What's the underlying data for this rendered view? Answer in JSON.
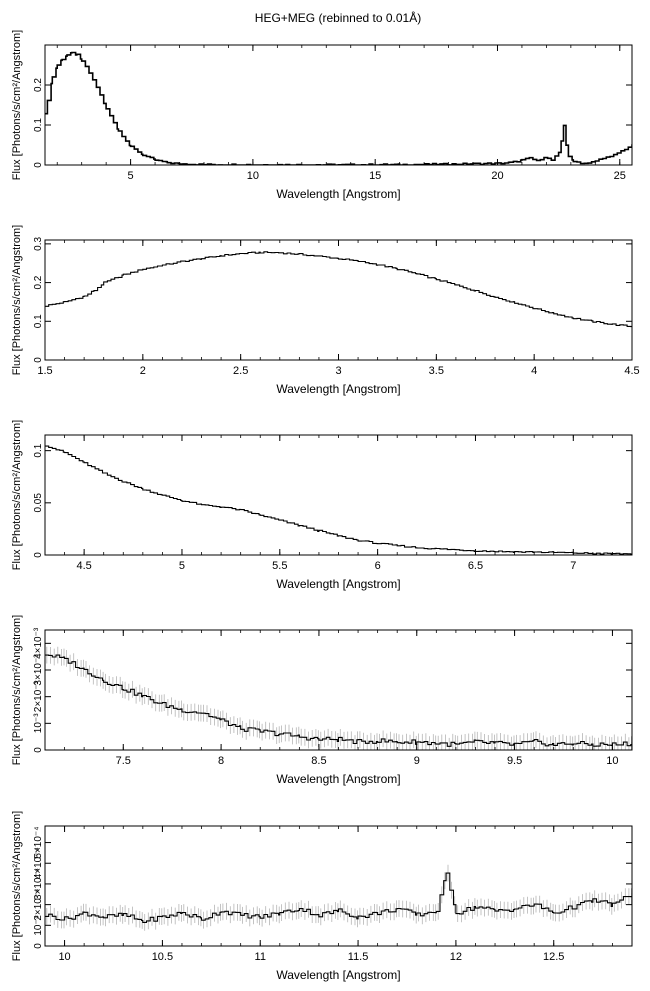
{
  "figure": {
    "title": "HEG+MEG (rebinned to 0.01Å)"
  },
  "chart_data": [
    {
      "type": "line",
      "title": "HEG+MEG (rebinned to 0.01Å)",
      "xlabel": "Wavelength [Angstrom]",
      "ylabel": "Flux [Photons/s/cm²/Angstrom]",
      "xlim": [
        1.5,
        25.5
      ],
      "ylim": [
        0,
        0.3
      ],
      "xticks": [
        5,
        10,
        15,
        20,
        25
      ],
      "xtick_labels": [
        "5",
        "10",
        "15",
        "20",
        "25"
      ],
      "yticks": [
        0,
        0.1,
        0.2
      ],
      "ytick_labels": [
        "0",
        "0.1",
        "0.2"
      ],
      "series": [
        {
          "x": [
            1.5,
            1.6,
            1.8,
            2.0,
            2.2,
            2.4,
            2.6,
            2.8,
            3.0,
            3.3,
            3.6,
            4.0,
            4.5,
            5.0,
            5.5,
            6.0,
            6.5,
            7.0,
            7.5,
            8,
            9,
            10,
            12,
            14,
            16,
            18,
            19,
            20,
            20.5,
            21,
            21.3,
            21.6,
            21.9,
            22.2,
            22.5,
            22.6,
            22.7,
            22.8,
            22.9,
            23.1,
            23.4,
            23.7,
            24.0,
            24.3,
            24.6,
            24.9,
            25.2,
            25.5
          ],
          "y": [
            0.13,
            0.16,
            0.22,
            0.25,
            0.265,
            0.275,
            0.28,
            0.275,
            0.26,
            0.23,
            0.195,
            0.14,
            0.085,
            0.045,
            0.025,
            0.012,
            0.006,
            0.003,
            0.002,
            0.001,
            0.001,
            0.0005,
            0.0005,
            0.0005,
            0.001,
            0.002,
            0.003,
            0.004,
            0.006,
            0.012,
            0.018,
            0.01,
            0.02,
            0.012,
            0.03,
            0.06,
            0.1,
            0.05,
            0.02,
            0.01,
            0.005,
            0.004,
            0.01,
            0.018,
            0.02,
            0.03,
            0.04,
            0.05
          ]
        }
      ]
    },
    {
      "type": "line",
      "xlabel": "Wavelength [Angstrom]",
      "ylabel": "Flux [Photons/s/cm²/Angstrom]",
      "xlim": [
        1.5,
        4.5
      ],
      "ylim": [
        0,
        0.31
      ],
      "xticks": [
        1.5,
        2,
        2.5,
        3,
        3.5,
        4,
        4.5
      ],
      "xtick_labels": [
        "1.5",
        "2",
        "2.5",
        "3",
        "3.5",
        "4",
        "4.5"
      ],
      "yticks": [
        0,
        0.1,
        0.2,
        0.3
      ],
      "ytick_labels": [
        "0",
        "0.1",
        "0.2",
        "0.3"
      ],
      "series": [
        {
          "x": [
            1.5,
            1.6,
            1.7,
            1.75,
            1.8,
            1.9,
            2.0,
            2.1,
            2.2,
            2.3,
            2.4,
            2.5,
            2.6,
            2.7,
            2.8,
            2.9,
            3.0,
            3.1,
            3.2,
            3.3,
            3.4,
            3.5,
            3.6,
            3.7,
            3.8,
            3.9,
            4.0,
            4.1,
            4.2,
            4.3,
            4.4,
            4.5
          ],
          "y": [
            0.14,
            0.15,
            0.165,
            0.18,
            0.2,
            0.22,
            0.235,
            0.245,
            0.255,
            0.262,
            0.27,
            0.275,
            0.278,
            0.277,
            0.273,
            0.268,
            0.262,
            0.255,
            0.246,
            0.235,
            0.222,
            0.208,
            0.193,
            0.178,
            0.162,
            0.148,
            0.133,
            0.12,
            0.108,
            0.099,
            0.092,
            0.086
          ]
        }
      ]
    },
    {
      "type": "line",
      "xlabel": "Wavelength [Angstrom]",
      "ylabel": "Flux [Photons/s/cm²/Angstrom]",
      "xlim": [
        4.3,
        7.3
      ],
      "ylim": [
        0,
        0.115
      ],
      "xticks": [
        4.5,
        5,
        5.5,
        6,
        6.5,
        7
      ],
      "xtick_labels": [
        "4.5",
        "5",
        "5.5",
        "6",
        "6.5",
        "7"
      ],
      "yticks": [
        0,
        0.05,
        0.1
      ],
      "ytick_labels": [
        "0",
        "0.05",
        "0.1"
      ],
      "series": [
        {
          "x": [
            4.3,
            4.4,
            4.5,
            4.6,
            4.7,
            4.8,
            4.9,
            5.0,
            5.1,
            5.2,
            5.3,
            5.4,
            5.5,
            5.6,
            5.7,
            5.8,
            5.9,
            6.0,
            6.1,
            6.2,
            6.3,
            6.4,
            6.5,
            6.6,
            6.7,
            6.8,
            6.9,
            7.0,
            7.1,
            7.2,
            7.3
          ],
          "y": [
            0.105,
            0.098,
            0.088,
            0.078,
            0.07,
            0.063,
            0.057,
            0.052,
            0.048,
            0.046,
            0.043,
            0.038,
            0.033,
            0.028,
            0.023,
            0.018,
            0.014,
            0.011,
            0.009,
            0.007,
            0.006,
            0.005,
            0.004,
            0.0035,
            0.003,
            0.0028,
            0.0025,
            0.002,
            0.0015,
            0.0012,
            0.001
          ]
        }
      ]
    },
    {
      "type": "line",
      "xlabel": "Wavelength [Angstrom]",
      "ylabel": "Flux [Photons/s/cm²/Angstrom]",
      "xlim": [
        7.1,
        10.1
      ],
      "ylim": [
        0,
        0.0045
      ],
      "xticks": [
        7.5,
        8,
        8.5,
        9,
        9.5,
        10
      ],
      "xtick_labels": [
        "7.5",
        "8",
        "8.5",
        "9",
        "9.5",
        "10"
      ],
      "yticks": [
        0,
        0.001,
        0.002,
        0.003,
        0.004
      ],
      "ytick_labels": [
        "0",
        "10⁻³",
        "2×10⁻³",
        "3×10⁻³",
        "4×10⁻³"
      ],
      "series": [
        {
          "x": [
            7.1,
            7.2,
            7.3,
            7.4,
            7.5,
            7.6,
            7.7,
            7.8,
            7.9,
            8.0,
            8.1,
            8.2,
            8.3,
            8.4,
            8.5,
            8.6,
            8.7,
            8.8,
            8.9,
            9.0,
            9.1,
            9.2,
            9.3,
            9.4,
            9.5,
            9.6,
            9.7,
            9.8,
            9.9,
            10.0,
            10.1
          ],
          "y": [
            0.0036,
            0.0034,
            0.003,
            0.0026,
            0.0023,
            0.002,
            0.0017,
            0.0015,
            0.0014,
            0.0011,
            0.0008,
            0.0007,
            0.0006,
            0.0005,
            0.0004,
            0.0004,
            0.0003,
            0.00035,
            0.0003,
            0.0003,
            0.00025,
            0.0002,
            0.0003,
            0.00025,
            0.0002,
            0.0003,
            0.0002,
            0.00025,
            0.0002,
            0.0002,
            0.00025
          ]
        }
      ]
    },
    {
      "type": "line",
      "xlabel": "Wavelength [Angstrom]",
      "ylabel": "Flux [Photons/s/cm²/Angstrom]",
      "xlim": [
        9.9,
        12.9
      ],
      "ylim": [
        0,
        0.00058
      ],
      "xticks": [
        10,
        10.5,
        11,
        11.5,
        12,
        12.5
      ],
      "xtick_labels": [
        "10",
        "10.5",
        "11",
        "11.5",
        "12",
        "12.5"
      ],
      "yticks": [
        0,
        0.0001,
        0.0002,
        0.0003,
        0.0004,
        0.0005
      ],
      "ytick_labels": [
        "0",
        "10⁻⁴",
        "2×10⁻⁴",
        "3×10⁻⁴",
        "4×10⁻⁴",
        "5×10⁻⁴"
      ],
      "series": [
        {
          "x": [
            9.9,
            10.0,
            10.1,
            10.2,
            10.3,
            10.4,
            10.5,
            10.6,
            10.7,
            10.8,
            10.9,
            11.0,
            11.1,
            11.2,
            11.3,
            11.4,
            11.5,
            11.6,
            11.7,
            11.8,
            11.9,
            11.95,
            12.0,
            12.1,
            12.2,
            12.3,
            12.4,
            12.5,
            12.6,
            12.7,
            12.8,
            12.9
          ],
          "y": [
            0.00015,
            0.00013,
            0.00016,
            0.00014,
            0.00015,
            0.00012,
            0.00014,
            0.00016,
            0.00013,
            0.00017,
            0.00015,
            0.00014,
            0.00016,
            0.00018,
            0.00015,
            0.00017,
            0.00014,
            0.00016,
            0.00018,
            0.00015,
            0.00017,
            0.00035,
            0.00016,
            0.00019,
            0.00017,
            0.00018,
            0.0002,
            0.00016,
            0.00019,
            0.00022,
            0.0002,
            0.00025
          ]
        }
      ]
    }
  ]
}
